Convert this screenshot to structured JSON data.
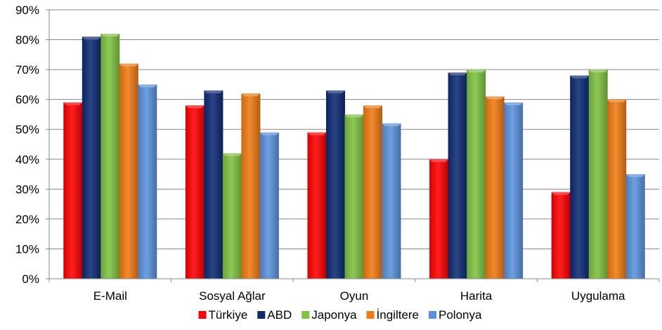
{
  "chart_data": {
    "type": "bar",
    "categories": [
      "E-Mail",
      "Sosyal Ağlar",
      "Oyun",
      "Harita",
      "Uygulama"
    ],
    "series": [
      {
        "name": "Türkiye",
        "color": "#ff0000",
        "values": [
          59,
          58,
          49,
          40,
          29
        ]
      },
      {
        "name": "ABD",
        "color": "#0d2a73",
        "values": [
          81,
          63,
          63,
          69,
          68
        ]
      },
      {
        "name": "Japonya",
        "color": "#7fc241",
        "values": [
          82,
          42,
          55,
          70,
          70
        ]
      },
      {
        "name": "İngiltere",
        "color": "#f07a12",
        "values": [
          72,
          62,
          58,
          61,
          60
        ]
      },
      {
        "name": "Polonya",
        "color": "#5a92dc",
        "values": [
          65,
          49,
          52,
          59,
          35
        ]
      }
    ],
    "yticks": [
      "0%",
      "10%",
      "20%",
      "30%",
      "40%",
      "50%",
      "60%",
      "70%",
      "80%",
      "90%"
    ],
    "ylim": [
      0,
      90
    ],
    "y_unit": "percent",
    "grid": true,
    "legend_position": "bottom"
  }
}
